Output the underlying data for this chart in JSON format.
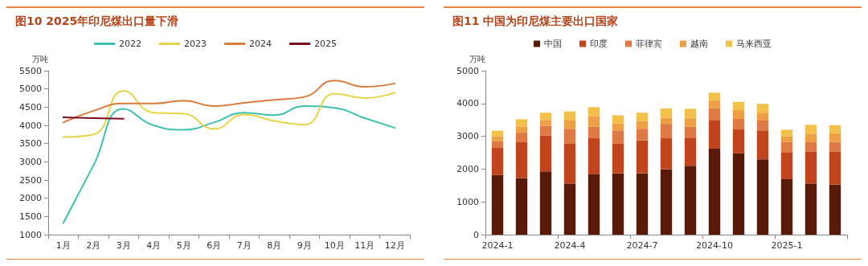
{
  "chart_data": [
    {
      "type": "line",
      "title": "图10 2025年印尼煤出口量下滑",
      "ylabel": "万吨",
      "categories": [
        "1月",
        "2月",
        "3月",
        "4月",
        "5月",
        "6月",
        "7月",
        "8月",
        "9月",
        "10月",
        "11月",
        "12月"
      ],
      "ylim": [
        1000,
        5500
      ],
      "yticks": [
        1000,
        1500,
        2000,
        2500,
        3000,
        3500,
        4000,
        4500,
        5000,
        5500
      ],
      "grid": false,
      "legend": "top",
      "series": [
        {
          "name": "2022",
          "color": "#3fc1b0",
          "values": [
            1320,
            2900,
            4450,
            4000,
            3880,
            4080,
            4350,
            4280,
            4530,
            4480,
            4200,
            3930
          ]
        },
        {
          "name": "2023",
          "color": "#e8d44a",
          "values": [
            3680,
            3750,
            4950,
            4350,
            4320,
            3900,
            4300,
            4120,
            4020,
            4870,
            4750,
            4900
          ]
        },
        {
          "name": "2024",
          "color": "#dc7b3c",
          "values": [
            4080,
            4400,
            4600,
            4600,
            4680,
            4530,
            4620,
            4700,
            4780,
            5230,
            5060,
            5150
          ]
        },
        {
          "name": "2025",
          "color": "#7a1020",
          "values": [
            4220,
            4200,
            4180,
            null,
            null,
            null,
            null,
            null,
            null,
            null,
            null,
            null
          ]
        }
      ]
    },
    {
      "type": "bar",
      "stacked": true,
      "title": "图11 中国为印尼煤主要出口国家",
      "ylabel": "万吨",
      "categories": [
        "2024-1",
        null,
        null,
        "2024-4",
        null,
        null,
        "2024-7",
        null,
        null,
        "2024-10",
        null,
        null,
        "2025-1",
        null,
        null
      ],
      "ylim": [
        0,
        5000
      ],
      "yticks": [
        0,
        1000,
        2000,
        3000,
        4000,
        5000
      ],
      "grid": false,
      "legend": "top",
      "series": [
        {
          "name": "中国",
          "color": "#5a1a0a",
          "values": [
            1820,
            1730,
            1930,
            1560,
            1840,
            1870,
            1870,
            2000,
            2100,
            2620,
            2480,
            2300,
            1690,
            1560,
            1530
          ]
        },
        {
          "name": "印度",
          "color": "#c0441c",
          "values": [
            830,
            1090,
            1100,
            1210,
            1100,
            900,
            1010,
            940,
            860,
            880,
            730,
            880,
            810,
            980,
            1010
          ]
        },
        {
          "name": "菲律宾",
          "color": "#e07a45",
          "values": [
            200,
            290,
            290,
            460,
            350,
            410,
            350,
            440,
            330,
            360,
            320,
            300,
            320,
            280,
            290
          ]
        },
        {
          "name": "越南",
          "color": "#eea044",
          "values": [
            150,
            190,
            180,
            250,
            330,
            220,
            240,
            180,
            260,
            240,
            270,
            240,
            180,
            260,
            270
          ]
        },
        {
          "name": "马来西亚",
          "color": "#f3c04a",
          "values": [
            170,
            220,
            220,
            280,
            270,
            240,
            250,
            290,
            290,
            230,
            250,
            270,
            200,
            270,
            240
          ]
        }
      ]
    }
  ]
}
